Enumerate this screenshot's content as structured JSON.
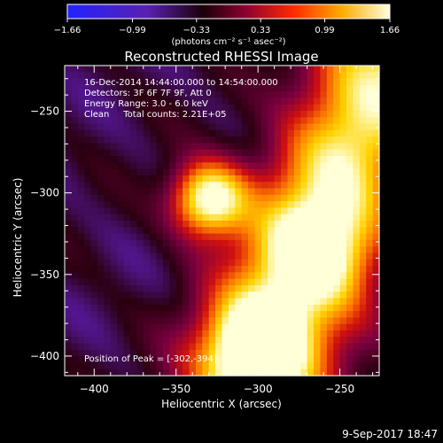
{
  "colorbar": {
    "tick_labels": [
      "-1.66",
      "-0.99",
      "-0.33",
      "0.33",
      "0.99",
      "1.66"
    ],
    "unit_label": "(photons cm⁻² s⁻¹ asec⁻²)",
    "min": -1.66,
    "max": 1.66
  },
  "footer": {
    "date_time": "9-Sep-2017 18:47"
  },
  "chart_data": {
    "type": "heatmap",
    "title": "Reconstructed RHESSI Image",
    "xlabel": "Heliocentric X (arcsec)",
    "ylabel": "Heliocentric Y (arcsec)",
    "xlim": [
      -418,
      -226
    ],
    "ylim": [
      -412,
      -222
    ],
    "xticks": [
      -400,
      -350,
      -300,
      -250
    ],
    "yticks": [
      -250,
      -300,
      -350,
      -400
    ],
    "annotations": [
      "16-Dec-2014 14:44:00.000 to 14:54:00.000",
      "Detectors: 3F 6F 7F 9F, Att 0",
      "Energy Range: 3.0 - 6.0 keV",
      "Clean     Total counts: 2.21E+05"
    ],
    "peak_label": "Position of Peak = [-302,-394]",
    "peak": [
      -302,
      -394
    ],
    "sources": [
      {
        "x": -330,
        "y": -304,
        "sigma": 16,
        "amp": 1.25
      },
      {
        "x": -302,
        "y": -394,
        "sigma": 20,
        "amp": 0.9
      },
      {
        "x": -262,
        "y": -336,
        "sigma": 22,
        "amp": 0.55
      }
    ],
    "ridge": {
      "start": [
        -226,
        -228
      ],
      "end": [
        -300,
        -412
      ],
      "width": 30,
      "amp": 1.05
    },
    "background": -0.85,
    "colormap": [
      "#2e2eff",
      "#5a1aa8",
      "#2a0010",
      "#7a0040",
      "#d01010",
      "#ff7a00",
      "#ffd400",
      "#ffffd8"
    ]
  }
}
